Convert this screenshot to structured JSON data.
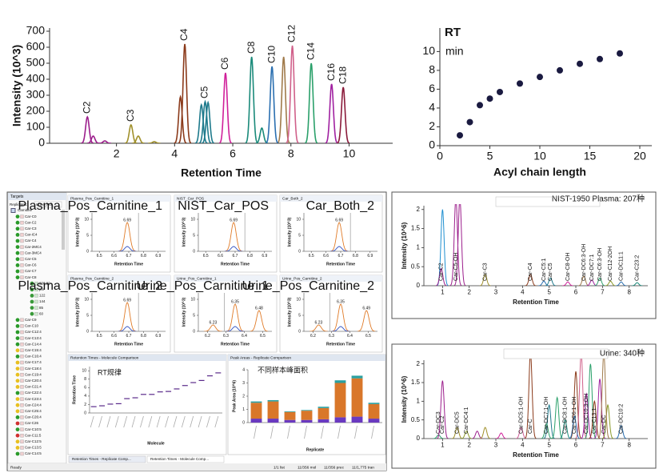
{
  "chart_data": [
    {
      "type": "peaks",
      "x_label": "Retention Time",
      "y_label": "Intensity (10^3)",
      "xlim": [
        -0.3,
        11.5
      ],
      "ylim": [
        0,
        720
      ],
      "xticks": [
        2,
        4,
        6,
        8,
        10
      ],
      "yticks": [
        0,
        100,
        200,
        300,
        400,
        500,
        600,
        700
      ],
      "peaks": [
        {
          "name": "C2",
          "color": "#9c1e8c",
          "rt": 1.0,
          "height": 165
        },
        {
          "name": "C3",
          "color": "#a0902a",
          "rt": 2.5,
          "height": 115
        },
        {
          "name": "C4",
          "color": "#8b3a1a",
          "rt": 4.35,
          "height": 620
        },
        {
          "name": "C5",
          "color": "#1e7a8c",
          "rt": 5.05,
          "height": 260
        },
        {
          "name": "C6",
          "color": "#d0209a",
          "rt": 5.75,
          "height": 440
        },
        {
          "name": "C8",
          "color": "#1a8a7a",
          "rt": 6.65,
          "height": 540
        },
        {
          "name": "C10",
          "color": "#2a6fb0",
          "rt": 7.35,
          "height": 480
        },
        {
          "name": "C12",
          "color": "#d0608a",
          "rt": 8.05,
          "height": 610
        },
        {
          "name": "C14",
          "color": "#2aa06a",
          "rt": 8.7,
          "height": 500
        },
        {
          "name": "C16",
          "color": "#a020a0",
          "rt": 9.4,
          "height": 370
        },
        {
          "name": "C18",
          "color": "#8a1a3a",
          "rt": 9.8,
          "height": 350
        }
      ],
      "minor_peaks": {
        "rt": [
          1.2,
          2.75,
          4.2,
          4.92,
          5.15,
          7.0,
          7.75,
          1.6,
          3.3
        ],
        "height": [
          45,
          45,
          290,
          240,
          255,
          95,
          540,
          15,
          10
        ],
        "color": [
          "#9c1e8c",
          "#a0902a",
          "#8b3a1a",
          "#1e7a8c",
          "#1e7a8c",
          "#1a8a7a",
          "#a07a4a",
          "#9c1e8c",
          "#a0902a"
        ]
      }
    },
    {
      "type": "scatter",
      "title": "RT",
      "annotation": "min",
      "x_label": "Acyl chain length",
      "xlim": [
        0,
        20
      ],
      "ylim": [
        0,
        12.5
      ],
      "xticks": [
        0,
        5,
        10,
        15,
        20
      ],
      "yticks": [
        0,
        2,
        4,
        6,
        8,
        10
      ],
      "color": "#1a1a40",
      "x": [
        2,
        3,
        4,
        5,
        6,
        8,
        10,
        12,
        14,
        16,
        18
      ],
      "y": [
        1.1,
        2.5,
        4.3,
        5.0,
        5.7,
        6.6,
        7.3,
        8.0,
        8.7,
        9.2,
        9.8
      ]
    },
    {
      "type": "peaks",
      "title": "NIST-1950 Plasma: 207种",
      "x_label": "Retention Time",
      "y_label": "Intensity (10^6)",
      "xlim": [
        0.3,
        8.7
      ],
      "ylim": [
        0,
        2.1
      ],
      "xticks": [
        1,
        2,
        3,
        4,
        5,
        6,
        7,
        8
      ],
      "yticks": [
        0,
        0.5,
        1,
        1.5,
        2
      ],
      "peaks": [
        {
          "name": "Car-C2",
          "color": "#9c1e8c",
          "rt": 0.95,
          "height": 0.45
        },
        {
          "name": "Car-C5-OH",
          "color": "#9c1e8c",
          "rt": 1.5,
          "height": 2.3
        },
        {
          "name": "Car-C3",
          "color": "#a0902a",
          "rt": 2.6,
          "height": 0.3
        },
        {
          "name": "Car-C4",
          "color": "#8b3a1a",
          "rt": 4.3,
          "height": 0.3
        },
        {
          "name": "Car-C5:1",
          "color": "#2a6fb0",
          "rt": 4.8,
          "height": 0.12
        },
        {
          "name": "Car-C5",
          "color": "#1e7a8c",
          "rt": 5.05,
          "height": 0.2
        },
        {
          "name": "Car-C8-OH",
          "color": "#d0209a",
          "rt": 5.7,
          "height": 0.1
        },
        {
          "name": "Car-DC6:3-OH",
          "color": "#a07a4a",
          "rt": 6.3,
          "height": 0.25
        },
        {
          "name": "Car-DC7:1",
          "color": "#a020a0",
          "rt": 6.6,
          "height": 0.15
        },
        {
          "name": "Car-C6:3-OH",
          "color": "#2aa06a",
          "rt": 6.9,
          "height": 0.2
        },
        {
          "name": "Car-C12-2OH",
          "color": "#8a9a2a",
          "rt": 7.3,
          "height": 0.12
        },
        {
          "name": "Car-DC11:1",
          "color": "#2a6fb0",
          "rt": 7.7,
          "height": 0.1
        },
        {
          "name": "Car-C23:2",
          "color": "#1a8a7a",
          "rt": 8.3,
          "height": 0.08
        }
      ],
      "minor_peaks": {
        "rt": [
          1.0,
          1.65
        ],
        "height": [
          2.0,
          2.3
        ],
        "color": [
          "#1f8fd0",
          "#9c1e8c"
        ]
      }
    },
    {
      "type": "peaks",
      "title": "Urine: 340种",
      "x_label": "Retention Time",
      "y_label": "Intensity (10^6)",
      "xlim": [
        0.3,
        8.7
      ],
      "ylim": [
        0,
        2.1
      ],
      "xticks": [
        1,
        2,
        3,
        4,
        5,
        6,
        7,
        8
      ],
      "yticks": [
        0,
        0.5,
        1,
        1.5,
        2
      ],
      "peaks": [
        {
          "name": "Car-DC3",
          "color": "#2aa06a",
          "rt": 0.85,
          "height": 0.1
        },
        {
          "name": "Car-C2",
          "color": "#9c1e8c",
          "rt": 1.0,
          "height": 1.55
        },
        {
          "name": "Car-DC5",
          "color": "#a0902a",
          "rt": 1.55,
          "height": 0.3
        },
        {
          "name": "Car-DC4:1",
          "color": "#8a9a2a",
          "rt": 1.9,
          "height": 0.2
        },
        {
          "name": "Car-DC5:1-OH",
          "color": "#d0609a",
          "rt": 3.95,
          "height": 0.3
        },
        {
          "name": "Car-C",
          "color": "#8b3a1a",
          "rt": 4.3,
          "height": 2.3
        },
        {
          "name": "Car-DC7:1-OH",
          "color": "#2aa06a",
          "rt": 4.9,
          "height": 0.4
        },
        {
          "name": "Car-DC8:1-OH",
          "color": "#1a8a7a",
          "rt": 5.6,
          "height": 0.5
        },
        {
          "name": "Car-DC6:1-OH",
          "color": "#2a6fb0",
          "rt": 5.95,
          "height": 0.6
        },
        {
          "name": "Car-DC10:3-OH",
          "color": "#a020a0",
          "rt": 6.4,
          "height": 1.2
        },
        {
          "name": "Car-C13:1",
          "color": "#8b3a1a",
          "rt": 6.7,
          "height": 1.0
        },
        {
          "name": "Car-DC",
          "color": "#a07a4a",
          "rt": 7.05,
          "height": 2.3
        },
        {
          "name": "Car-DC10:2",
          "color": "#2a6fb0",
          "rt": 7.7,
          "height": 0.35
        }
      ],
      "minor_peaks": {
        "rt": [
          2.3,
          2.6,
          3.2,
          5.0,
          5.3,
          6.0,
          6.2,
          6.55,
          6.9,
          7.2
        ],
        "height": [
          0.2,
          0.3,
          0.15,
          0.9,
          1.1,
          1.8,
          2.3,
          2.0,
          1.6,
          0.9
        ],
        "color": [
          "#9c1e8c",
          "#a0902a",
          "#d0209a",
          "#1e7a8c",
          "#2aa06a",
          "#8b3a1a",
          "#d0608a",
          "#2aa06a",
          "#a020a0",
          "#8a9a2a"
        ]
      }
    }
  ],
  "skyline": {
    "targets": {
      "title": "Targets",
      "replicates_label": "Replicates:",
      "replicate": "Urine_Pos_",
      "root": "Carnitine",
      "items": [
        {
          "name": "Car-C0",
          "status": "ok"
        },
        {
          "name": "Car-C2",
          "status": "ok"
        },
        {
          "name": "Car-C3",
          "status": "ok"
        },
        {
          "name": "Car-iC4",
          "status": "ok"
        },
        {
          "name": "Car-C4",
          "status": "ok"
        },
        {
          "name": "Car-2MC4",
          "status": "ok"
        },
        {
          "name": "Car-3MC4",
          "status": "ok"
        },
        {
          "name": "Car-C5",
          "status": "ok"
        },
        {
          "name": "Car-C6",
          "status": "ok"
        },
        {
          "name": "Car-C7",
          "status": "ok"
        },
        {
          "name": "Car-C8",
          "status": "ok"
        },
        {
          "name": "200.20",
          "status": "child"
        },
        {
          "name": "pre",
          "status": "child"
        },
        {
          "name": "122",
          "status": "child"
        },
        {
          "name": "144",
          "status": "child"
        },
        {
          "name": "85",
          "status": "child"
        },
        {
          "name": "60",
          "status": "child"
        },
        {
          "name": "Car-C9",
          "status": "ok"
        },
        {
          "name": "Car-C10",
          "status": "ok"
        },
        {
          "name": "Car-C12:4",
          "status": "ok"
        },
        {
          "name": "Car-C13:4",
          "status": "ok"
        },
        {
          "name": "Car-C14:4",
          "status": "ok"
        },
        {
          "name": "Car-C15:4",
          "status": "warn"
        },
        {
          "name": "Car-C16:4",
          "status": "ok"
        },
        {
          "name": "Car-C17:4",
          "status": "warn"
        },
        {
          "name": "Car-C18:4",
          "status": "warn"
        },
        {
          "name": "Car-C19:4",
          "status": "warn"
        },
        {
          "name": "Car-C20:4",
          "status": "warn"
        },
        {
          "name": "Car-C21:4",
          "status": "warn"
        },
        {
          "name": "Car-C22:4",
          "status": "ok"
        },
        {
          "name": "Car-C23:4",
          "status": "warn"
        },
        {
          "name": "Car-C24:4",
          "status": "warn"
        },
        {
          "name": "Car-C25:4",
          "status": "warn"
        },
        {
          "name": "Car-C26:4",
          "status": "ok"
        },
        {
          "name": "Car-C26",
          "status": "bad"
        },
        {
          "name": "Car-C10:5",
          "status": "ok"
        },
        {
          "name": "Car-C11:5",
          "status": "bad"
        },
        {
          "name": "Car-C12:5",
          "status": "warn"
        },
        {
          "name": "Car-C13:5",
          "status": "warn"
        },
        {
          "name": "Car-C14:5",
          "status": "ok"
        }
      ]
    },
    "chromatograms": [
      {
        "title": "Plasma_Pos_Carnitine_1",
        "x_label": "Retention Time",
        "y_label": "Intensity (10^3)",
        "xlim": [
          6.45,
          6.95
        ],
        "ylim": [
          0,
          12
        ],
        "xticks": [
          6.5,
          6.6,
          6.7,
          6.8,
          6.9
        ],
        "yticks": [
          0,
          5,
          10
        ],
        "peaks": [
          {
            "name": "6.69",
            "color": "#e07b28",
            "rt": 6.69,
            "height": 9
          },
          {
            "color": "#3050c0",
            "rt": 6.69,
            "height": 1.5
          }
        ]
      },
      {
        "title": "NIST_Car_POS",
        "x_label": "Retention Time",
        "y_label": "Intensity (10^3)",
        "xlim": [
          6.45,
          6.95
        ],
        "ylim": [
          0,
          12
        ],
        "xticks": [
          6.5,
          6.6,
          6.7,
          6.8,
          6.9
        ],
        "yticks": [
          0,
          5,
          10
        ],
        "peaks": [
          {
            "name": "6.69",
            "color": "#e07b28",
            "rt": 6.69,
            "height": 9
          },
          {
            "color": "#3050c0",
            "rt": 6.69,
            "height": 1.5
          }
        ]
      },
      {
        "title": "Car_Both_2",
        "x_label": "Retention Time",
        "y_label": "Intensity (10^3)",
        "xlim": [
          6.45,
          6.95
        ],
        "ylim": [
          0,
          12
        ],
        "xticks": [
          6.5,
          6.6,
          6.7,
          6.8,
          6.9
        ],
        "yticks": [
          0,
          5,
          10
        ],
        "peaks": [
          {
            "name": "6.69",
            "color": "#e07b28",
            "rt": 6.69,
            "height": 9
          },
          {
            "color": "#3050c0",
            "rt": 6.69,
            "height": 1.5
          }
        ]
      },
      {
        "title": "Plasma_Pos_Carnitine_2",
        "x_label": "Retention Time",
        "y_label": "Intensity (10^3)",
        "xlim": [
          6.45,
          6.95
        ],
        "ylim": [
          0,
          12
        ],
        "xticks": [
          6.5,
          6.6,
          6.7,
          6.8,
          6.9
        ],
        "yticks": [
          0,
          5,
          10
        ],
        "peaks": [
          {
            "name": "6.69",
            "color": "#e07b28",
            "rt": 6.69,
            "height": 9
          },
          {
            "color": "#3050c0",
            "rt": 6.69,
            "height": 1.5
          }
        ]
      },
      {
        "title": "Urine_Pos_Carnitine_1",
        "x_label": "Retention Time",
        "y_label": "Intensity (10^3)",
        "xlim": [
          6.15,
          6.55
        ],
        "ylim": [
          0,
          12
        ],
        "xticks": [
          6.2,
          6.3,
          6.4,
          6.5
        ],
        "yticks": [
          0,
          5,
          10
        ],
        "peaks": [
          {
            "name": "6.23",
            "color": "#e07b28",
            "rt": 6.23,
            "height": 2
          },
          {
            "name": "6.35",
            "color": "#e07b28",
            "rt": 6.35,
            "height": 8.5
          },
          {
            "name": "6.48",
            "color": "#e07b28",
            "rt": 6.48,
            "height": 6.5
          },
          {
            "color": "#3050c0",
            "rt": 6.35,
            "height": 1.5
          }
        ]
      },
      {
        "title": "Urine_Pos_Carnitine_2",
        "x_label": "Retention Time",
        "y_label": "Intensity (10^3)",
        "xlim": [
          6.15,
          6.55
        ],
        "ylim": [
          0,
          12
        ],
        "xticks": [
          6.2,
          6.3,
          6.4,
          6.5
        ],
        "yticks": [
          0,
          5,
          10
        ],
        "peaks": [
          {
            "name": "6.23",
            "color": "#e07b28",
            "rt": 6.23,
            "height": 2
          },
          {
            "name": "6.35",
            "color": "#e07b28",
            "rt": 6.35,
            "height": 8.5
          },
          {
            "name": "6.49",
            "color": "#e07b28",
            "rt": 6.49,
            "height": 6.5
          },
          {
            "color": "#3050c0",
            "rt": 6.35,
            "height": 1.5
          }
        ]
      }
    ],
    "rt_comparison": {
      "title": "Retention Times - Molecule Comparison",
      "annotation": "RT规律",
      "x_label": "Molecule",
      "y_label": "Retention Time",
      "ylim": [
        0,
        11
      ],
      "yticks": [
        0,
        2,
        4,
        6,
        8,
        10
      ],
      "color": "#5a2a8a",
      "values": [
        1.5,
        1.7,
        2.1,
        2.2,
        3.4,
        3.6,
        4.4,
        4.4,
        5.0,
        5.1,
        5.7,
        6.5,
        7.2,
        7.7,
        8.8,
        9.5
      ]
    },
    "peak_areas": {
      "title": "Peak Areas - Replicate Comparison",
      "annotation": "不同样本峰面积",
      "x_label": "Replicate",
      "y_label": "Peak Area (10^6)",
      "ylim": [
        0,
        4
      ],
      "yticks": [
        0,
        1,
        2,
        3,
        4
      ],
      "series": [
        {
          "color": "#6a3ac0",
          "values": [
            0.3,
            0.3,
            0.2,
            0.2,
            0.25,
            0.4,
            0.45,
            0.3
          ]
        },
        {
          "color": "#d9772a",
          "values": [
            1.2,
            1.3,
            0.6,
            0.7,
            0.85,
            2.6,
            2.9,
            1.1
          ]
        },
        {
          "color": "#2aa0a0",
          "values": [
            0.1,
            0.1,
            0.05,
            0.05,
            0.1,
            0.2,
            0.2,
            0.1
          ]
        }
      ]
    },
    "tabs": [
      "Retention Times - Replicate Comp...",
      "Retention Times - Molecule Comp..."
    ],
    "status": {
      "ready": "Ready",
      "list": "1/1 list",
      "mol": "11/356 mol",
      "prec": "11/356 prec",
      "tran": "11/1,775 tran"
    }
  }
}
